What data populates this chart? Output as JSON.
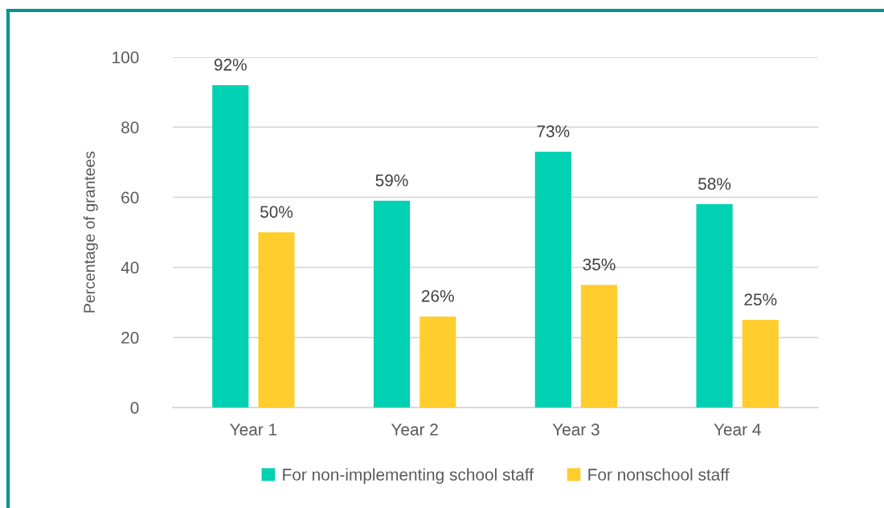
{
  "chart_data": {
    "type": "bar",
    "ylabel": "Percentage of grantees",
    "categories": [
      "Year 1",
      "Year 2",
      "Year 3",
      "Year 4"
    ],
    "series": [
      {
        "name": "For non-implementing school staff",
        "color": "#00d1b2",
        "values": [
          92,
          59,
          73,
          58
        ],
        "value_labels": [
          "92%",
          "59%",
          "73%",
          "58%"
        ]
      },
      {
        "name": "For nonschool staff",
        "color": "#ffcd2e",
        "values": [
          50,
          26,
          35,
          25
        ],
        "value_labels": [
          "50%",
          "26%",
          "35%",
          "25%"
        ]
      }
    ],
    "ylim": [
      0,
      100
    ],
    "yticks": [
      0,
      20,
      40,
      60,
      80,
      100
    ],
    "grid": "y",
    "legend": "bottom"
  }
}
